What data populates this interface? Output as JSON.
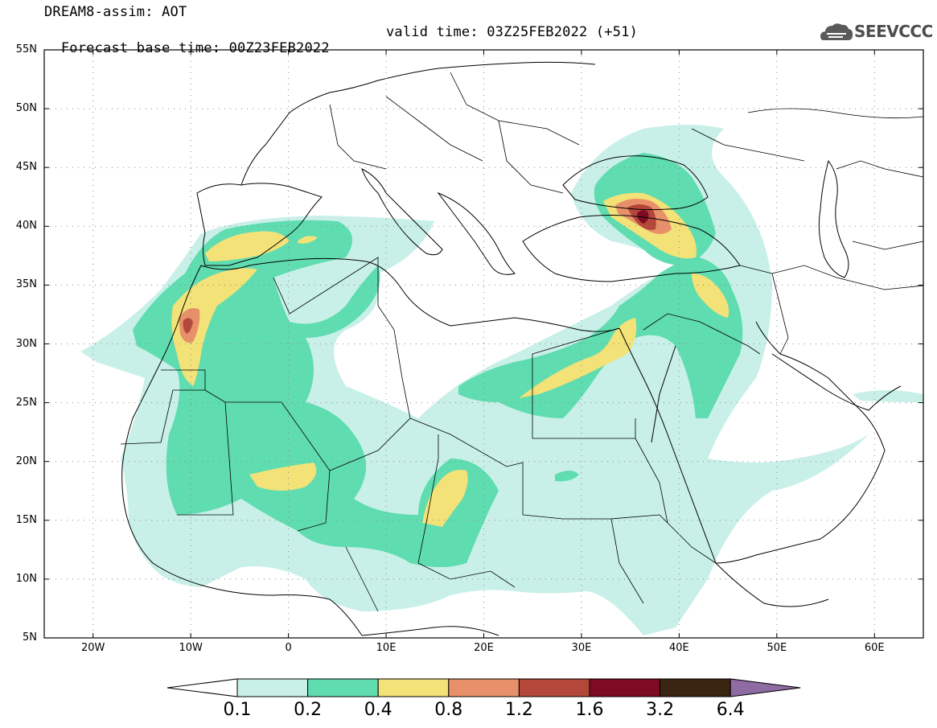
{
  "header": {
    "line1": "DREAM8-assim: AOT",
    "line2_base": "Forecast base time: 00Z23FEB2022",
    "line2_valid": "valid time: 03Z25FEB2022 (+51)",
    "logo_text": "SEEVCCC",
    "logo_icon": "cloud-icon"
  },
  "axes": {
    "lat_labels": [
      "55N",
      "50N",
      "45N",
      "40N",
      "35N",
      "30N",
      "25N",
      "20N",
      "15N",
      "10N",
      "5N"
    ],
    "lon_labels": [
      "20W",
      "10W",
      "0",
      "10E",
      "20E",
      "30E",
      "40E",
      "50E",
      "60E"
    ],
    "lat_range": [
      5,
      55
    ],
    "lon_range": [
      -25,
      65
    ]
  },
  "colorbar": {
    "labels": [
      "0.1",
      "0.2",
      "0.4",
      "0.8",
      "1.2",
      "1.6",
      "3.2",
      "6.4"
    ],
    "colors": [
      "#ffffff",
      "#c8f0e8",
      "#5fdcb0",
      "#f2e277",
      "#e8906a",
      "#b2473a",
      "#7d0b24",
      "#3a2412",
      "#8e6ba3"
    ]
  },
  "colors": {
    "land_outline": "#000000",
    "grid": "#888888"
  }
}
